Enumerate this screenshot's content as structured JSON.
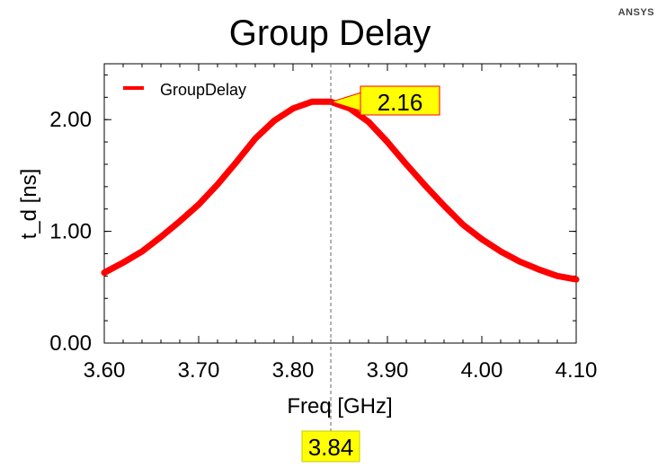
{
  "app": {
    "brand": "ANSYS"
  },
  "chart_data": {
    "type": "line",
    "title": "Group Delay",
    "xlabel": "Freq [GHz]",
    "ylabel": "t_d [ns]",
    "xlim": [
      3.6,
      4.1
    ],
    "ylim": [
      0.0,
      2.5
    ],
    "x_ticks": [
      "3.60",
      "3.70",
      "3.80",
      "3.90",
      "4.00",
      "4.10"
    ],
    "y_ticks": [
      "0.00",
      "1.00",
      "2.00"
    ],
    "grid": false,
    "legend": {
      "position": "top-left",
      "entries": [
        "GroupDelay"
      ]
    },
    "series": [
      {
        "name": "GroupDelay",
        "color": "#ff0000",
        "x": [
          3.6,
          3.62,
          3.64,
          3.66,
          3.68,
          3.7,
          3.72,
          3.74,
          3.76,
          3.78,
          3.8,
          3.82,
          3.84,
          3.86,
          3.88,
          3.9,
          3.92,
          3.94,
          3.96,
          3.98,
          4.0,
          4.02,
          4.04,
          4.06,
          4.08,
          4.1
        ],
        "y": [
          0.63,
          0.72,
          0.82,
          0.95,
          1.09,
          1.24,
          1.42,
          1.62,
          1.83,
          1.99,
          2.1,
          2.16,
          2.16,
          2.1,
          1.98,
          1.8,
          1.6,
          1.41,
          1.23,
          1.06,
          0.93,
          0.82,
          0.73,
          0.66,
          0.6,
          0.57
        ]
      }
    ],
    "marker": {
      "x": 3.84,
      "y": 2.16,
      "x_label": "3.84",
      "y_label": "2.16"
    }
  }
}
